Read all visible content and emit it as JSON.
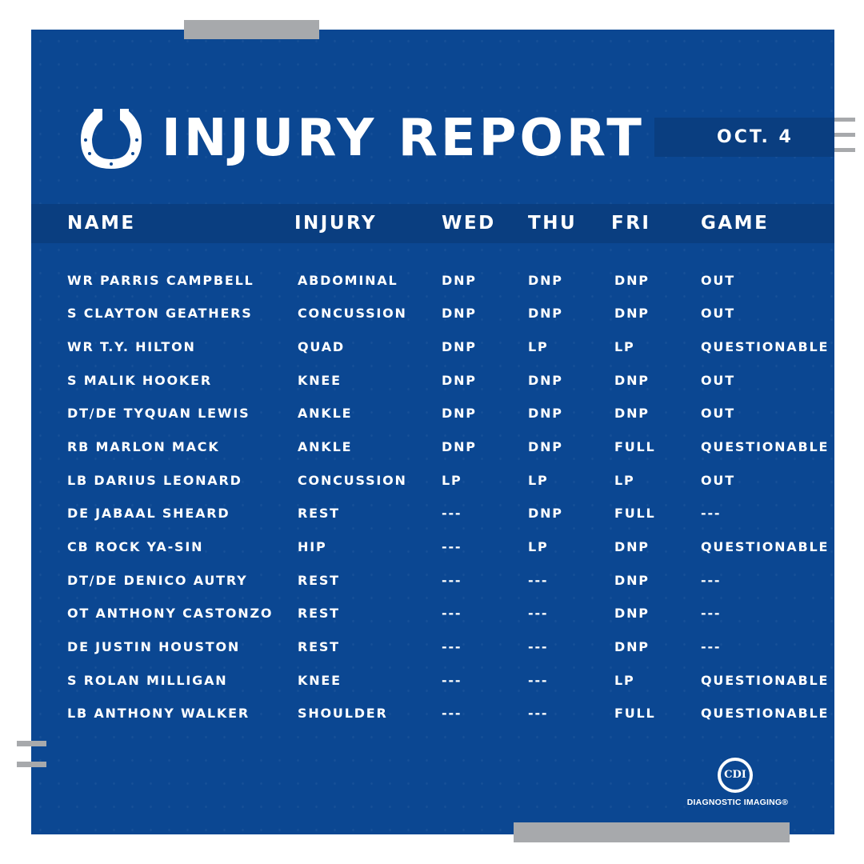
{
  "header": {
    "title": "INJURY REPORT",
    "date": "OCT. 4"
  },
  "table": {
    "columns": [
      "NAME",
      "INJURY",
      "WED",
      "THU",
      "FRI",
      "GAME"
    ],
    "rows": [
      [
        "WR PARRIS CAMPBELL",
        "ABDOMINAL",
        "DNP",
        "DNP",
        "DNP",
        "OUT"
      ],
      [
        "S CLAYTON GEATHERS",
        "CONCUSSION",
        "DNP",
        "DNP",
        "DNP",
        "OUT"
      ],
      [
        "WR T.Y. HILTON",
        "QUAD",
        "DNP",
        "LP",
        "LP",
        "QUESTIONABLE"
      ],
      [
        "S MALIK HOOKER",
        "KNEE",
        "DNP",
        "DNP",
        "DNP",
        "OUT"
      ],
      [
        "DT/DE TYQUAN LEWIS",
        "ANKLE",
        "DNP",
        "DNP",
        "DNP",
        "OUT"
      ],
      [
        "RB MARLON MACK",
        "ANKLE",
        "DNP",
        "DNP",
        "FULL",
        "QUESTIONABLE"
      ],
      [
        "LB DARIUS LEONARD",
        "CONCUSSION",
        "LP",
        "LP",
        "LP",
        "OUT"
      ],
      [
        "DE JABAAL SHEARD",
        "REST",
        "---",
        "DNP",
        "FULL",
        "---"
      ],
      [
        "CB ROCK YA-SIN",
        "HIP",
        "---",
        "LP",
        "DNP",
        "QUESTIONABLE"
      ],
      [
        "DT/DE DENICO AUTRY",
        "REST",
        "---",
        "---",
        "DNP",
        "---"
      ],
      [
        "OT ANTHONY CASTONZO",
        "REST",
        "---",
        "---",
        "DNP",
        "---"
      ],
      [
        "DE JUSTIN HOUSTON",
        "REST",
        "---",
        "---",
        "DNP",
        "---"
      ],
      [
        "S ROLAN MILLIGAN",
        "KNEE",
        "---",
        "---",
        "LP",
        "QUESTIONABLE"
      ],
      [
        "LB ANTHONY WALKER",
        "SHOULDER",
        "---",
        "---",
        "FULL",
        "QUESTIONABLE"
      ]
    ]
  },
  "sponsor": {
    "logo_text": "CDI",
    "name": "DIAGNOSTIC IMAGING®"
  },
  "icons": {
    "team_logo": "horseshoe-icon"
  },
  "colors": {
    "panel": "#0b4792",
    "band": "#0a3e80",
    "accent_gray": "#a7a9ac",
    "text": "#ffffff"
  }
}
